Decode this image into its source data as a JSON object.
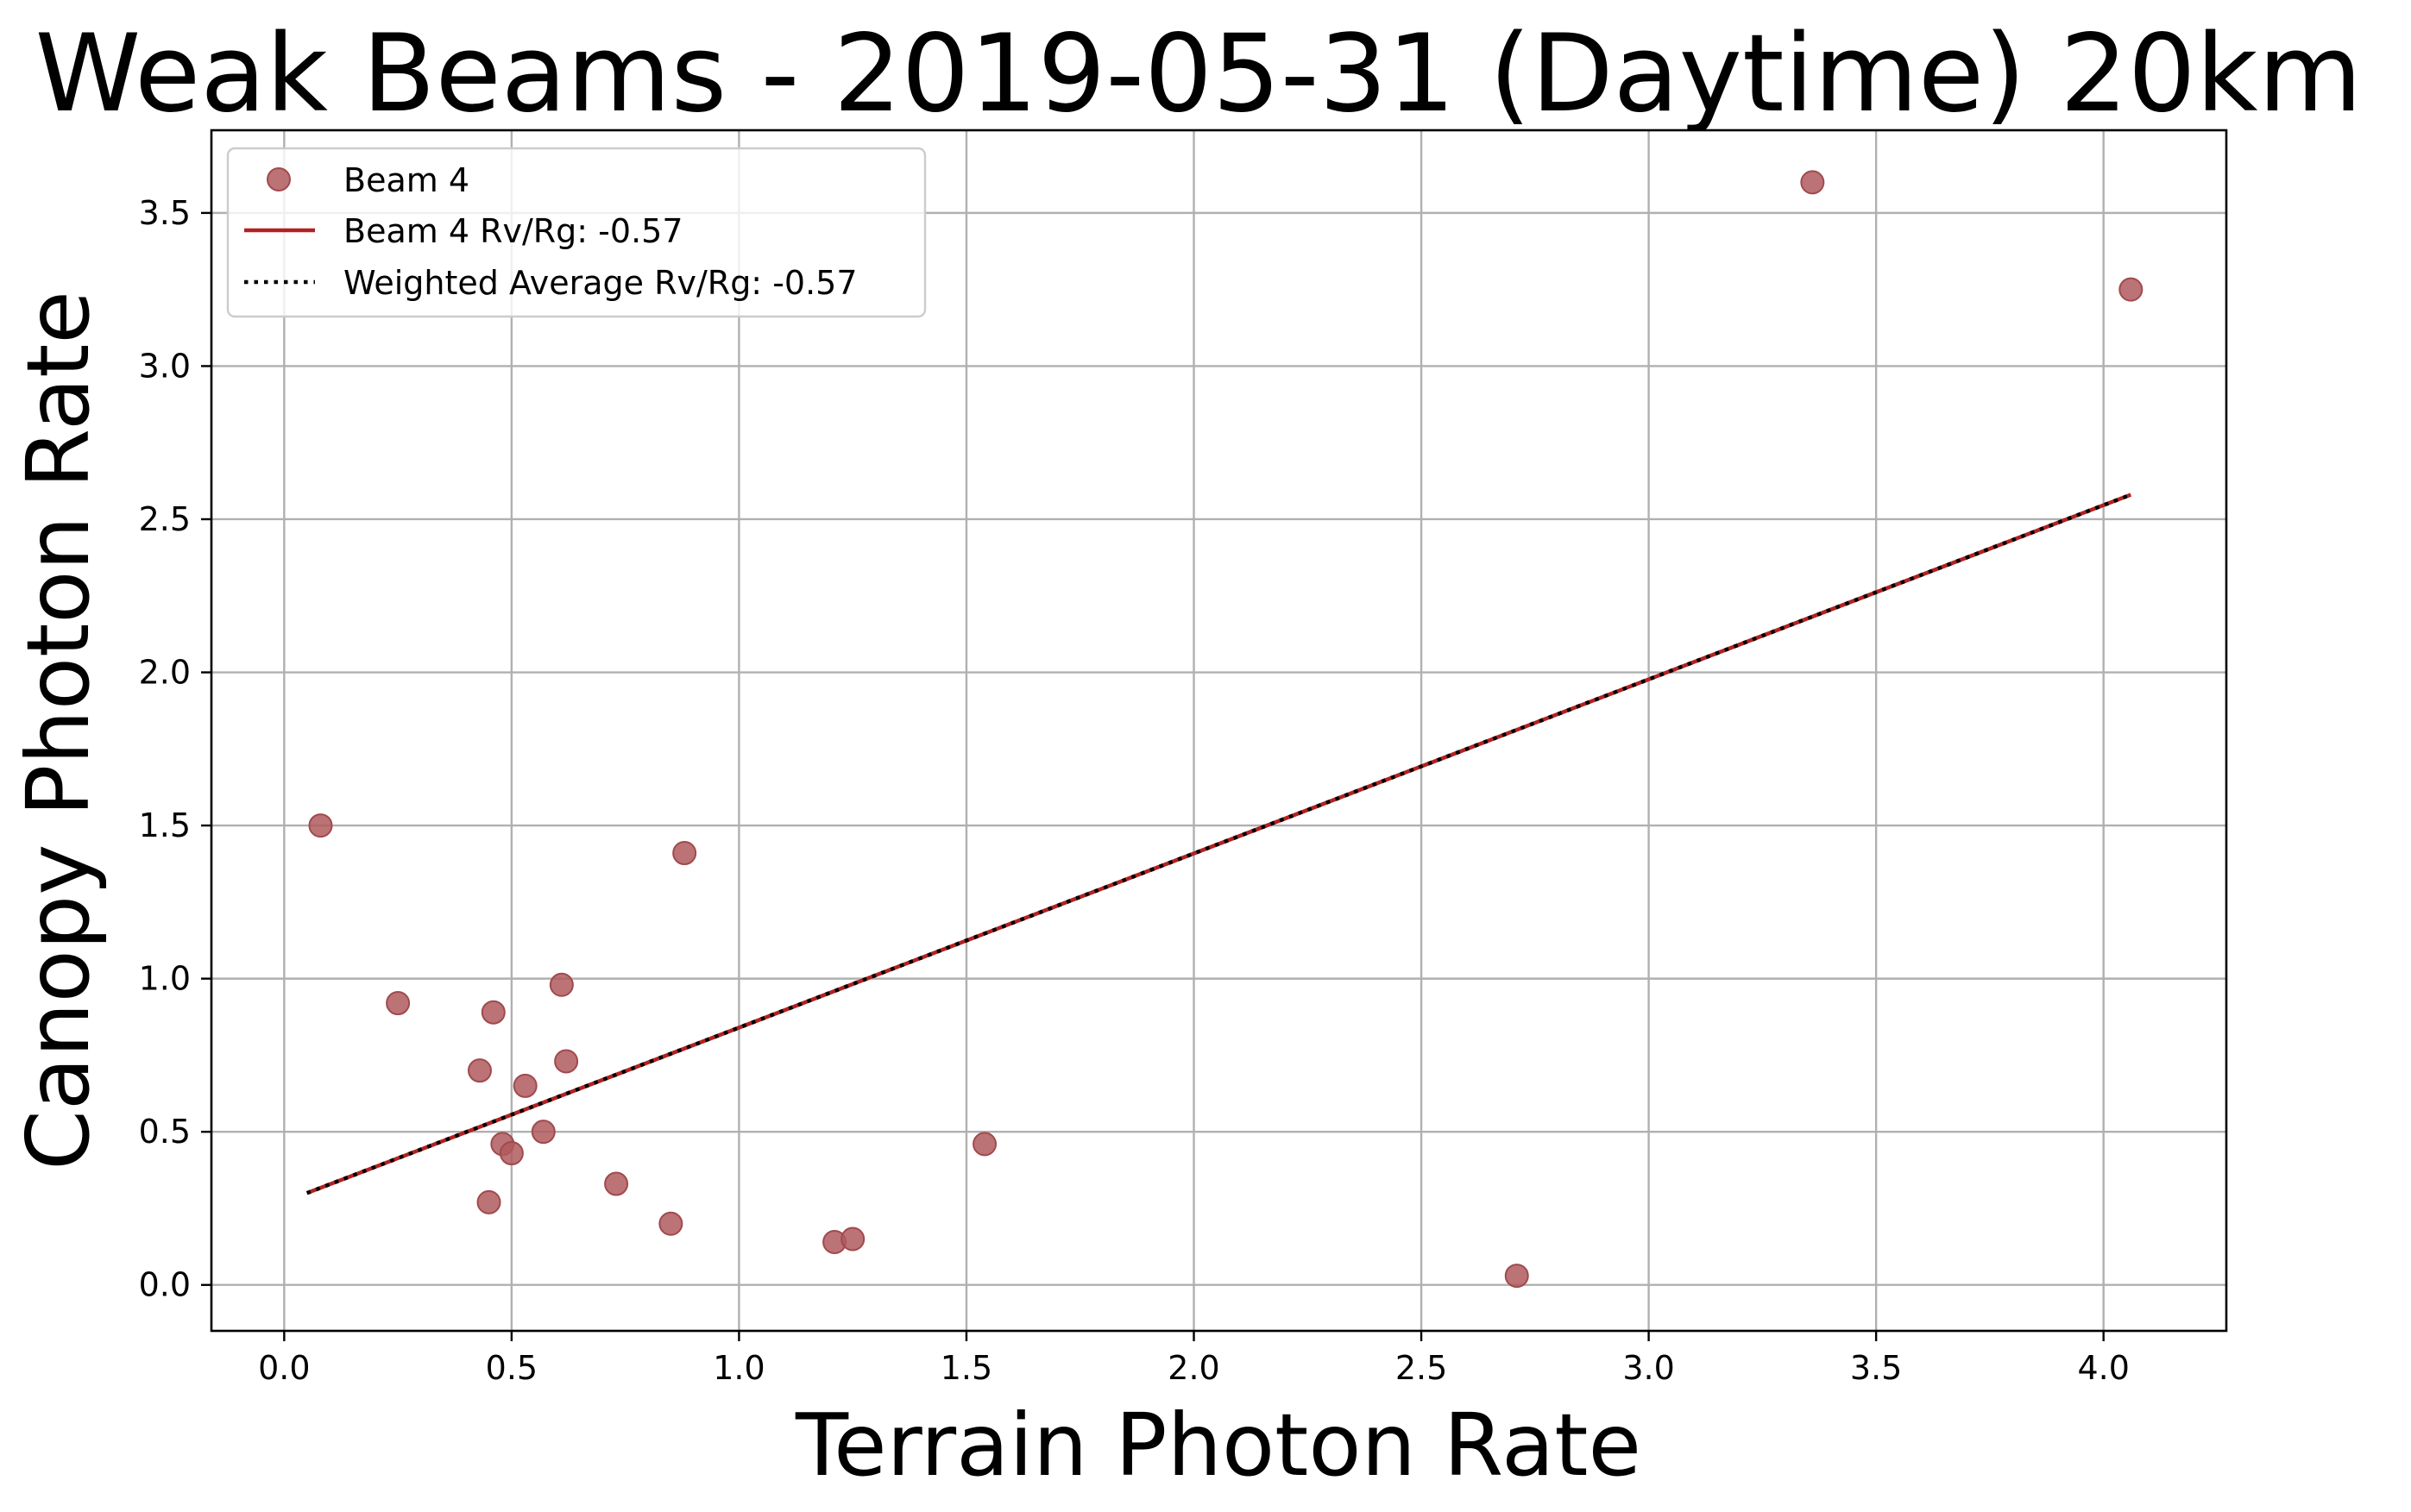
{
  "chart_data": {
    "type": "scatter",
    "title": "Weak Beams - 2019-05-31 (Daytime) 20km",
    "xlabel": "Terrain Photon Rate",
    "ylabel": "Canopy Photon Rate",
    "xlim": [
      -0.16,
      4.27
    ],
    "ylim": [
      -0.15,
      3.77
    ],
    "xticks": [
      "0.0",
      "0.5",
      "1.0",
      "1.5",
      "2.0",
      "2.5",
      "3.0",
      "3.5",
      "4.0"
    ],
    "yticks": [
      "0.0",
      "0.5",
      "1.0",
      "1.5",
      "2.0",
      "2.5",
      "3.0",
      "3.5"
    ],
    "grid": true,
    "legend_position": "top-left",
    "series": [
      {
        "name": "Beam 4",
        "kind": "scatter",
        "color": "#b05a5e",
        "points": [
          [
            0.08,
            1.5
          ],
          [
            0.25,
            0.92
          ],
          [
            0.43,
            0.7
          ],
          [
            0.45,
            0.27
          ],
          [
            0.46,
            0.89
          ],
          [
            0.48,
            0.46
          ],
          [
            0.5,
            0.43
          ],
          [
            0.53,
            0.65
          ],
          [
            0.57,
            0.5
          ],
          [
            0.61,
            0.98
          ],
          [
            0.62,
            0.73
          ],
          [
            0.73,
            0.33
          ],
          [
            0.85,
            0.2
          ],
          [
            0.88,
            1.41
          ],
          [
            1.21,
            0.14
          ],
          [
            1.25,
            0.15
          ],
          [
            1.54,
            0.46
          ],
          [
            2.71,
            0.03
          ],
          [
            3.36,
            3.6
          ],
          [
            4.06,
            3.25
          ]
        ]
      },
      {
        "name": "Beam 4 Rv/Rg: -0.57",
        "kind": "line",
        "color": "#b22222",
        "points": [
          [
            0.05,
            0.3
          ],
          [
            4.06,
            2.58
          ]
        ]
      },
      {
        "name": "Weighted Average Rv/Rg: -0.57",
        "kind": "dotted-line",
        "color": "#000000",
        "points": [
          [
            0.05,
            0.3
          ],
          [
            4.06,
            2.58
          ]
        ]
      }
    ]
  }
}
